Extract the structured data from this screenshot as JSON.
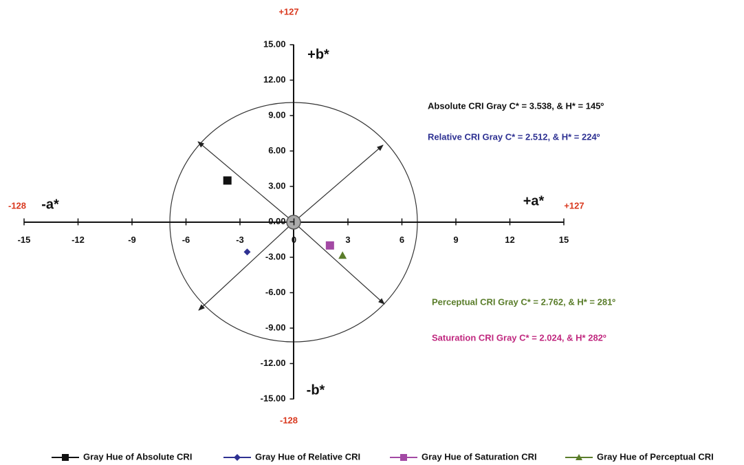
{
  "chart_data": {
    "type": "scatter",
    "xlim": [
      -15,
      15
    ],
    "ylim": [
      -15,
      15
    ],
    "xticks": [
      -15,
      -12,
      -9,
      -6,
      -3,
      0,
      3,
      6,
      9,
      12,
      15
    ],
    "yticks": [
      {
        "value": 15,
        "label": "15.00"
      },
      {
        "value": 12,
        "label": "12.00"
      },
      {
        "value": 9,
        "label": "9.00"
      },
      {
        "value": 6,
        "label": "6.00"
      },
      {
        "value": 3,
        "label": "3.00"
      },
      {
        "value": 0,
        "label": "0.00"
      },
      {
        "value": -3,
        "label": "-3.00"
      },
      {
        "value": -6,
        "label": "-6.00"
      },
      {
        "value": -9,
        "label": "-9.00"
      },
      {
        "value": -12,
        "label": "-12.00"
      },
      {
        "value": -15,
        "label": "-15.00"
      }
    ],
    "series": [
      {
        "name": "Gray Hue of Absolute CRI",
        "color": "#111111",
        "marker": "square",
        "x": [
          -3.7
        ],
        "values": [
          3.5
        ]
      },
      {
        "name": "Gray Hue of Relative CRI",
        "color": "#2e3192",
        "marker": "diamond",
        "x": [
          -2.6
        ],
        "values": [
          -2.55
        ]
      },
      {
        "name": "Gray Hue of Saturation CRI",
        "color": "#a349a4",
        "marker": "square",
        "x": [
          2.0
        ],
        "values": [
          -2.0
        ]
      },
      {
        "name": "Gray Hue of Perceptual CRI",
        "color": "#5a7d2a",
        "marker": "triangle",
        "x": [
          2.7
        ],
        "values": [
          -2.85
        ]
      }
    ],
    "annotations": [
      {
        "text": "+127",
        "color": "#d9381e"
      },
      {
        "text": "-128",
        "color": "#d9381e"
      },
      {
        "text": "+127",
        "color": "#d9381e"
      },
      {
        "text": "-128",
        "color": "#d9381e"
      },
      {
        "text": "+b*",
        "color": "#111111"
      },
      {
        "text": "-b*",
        "color": "#111111"
      },
      {
        "text": "-a*",
        "color": "#111111"
      },
      {
        "text": "+a*",
        "color": "#111111"
      },
      {
        "text": "Absolute CRI Gray C* = 3.538, & H* = 145º",
        "color": "#111111"
      },
      {
        "text": "Relative CRI Gray C* = 2.512, & H* = 224º",
        "color": "#2e3192"
      },
      {
        "text": "Perceptual CRI Gray C* = 2.762, & H* = 281º",
        "color": "#5a7d2a"
      },
      {
        "text": "Saturation CRI Gray C* = 2.024, & H* 282º",
        "color": "#c0287f"
      }
    ]
  }
}
